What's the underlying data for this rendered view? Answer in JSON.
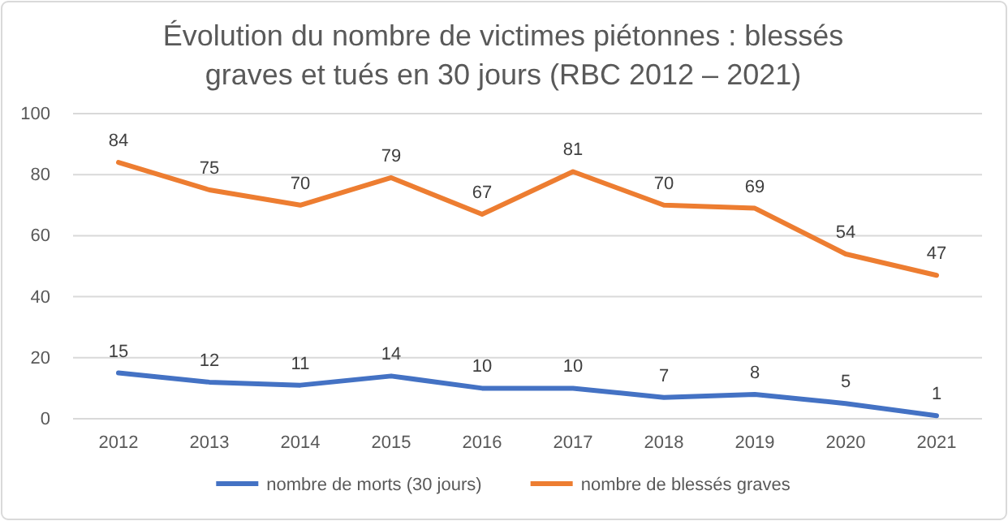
{
  "chart_data": {
    "type": "line",
    "title": "Évolution du nombre de victimes piétonnes : blessés graves et tués en 30 jours (RBC 2012 – 2021)",
    "categories": [
      "2012",
      "2013",
      "2014",
      "2015",
      "2016",
      "2017",
      "2018",
      "2019",
      "2020",
      "2021"
    ],
    "series": [
      {
        "name": "nombre de morts (30 jours)",
        "color": "#4472c4",
        "values": [
          15,
          12,
          11,
          14,
          10,
          10,
          7,
          8,
          5,
          1
        ]
      },
      {
        "name": "nombre de blessés graves",
        "color": "#ed7d31",
        "values": [
          84,
          75,
          70,
          79,
          67,
          81,
          70,
          69,
          54,
          47
        ]
      }
    ],
    "ylim": [
      0,
      100
    ],
    "yticks": [
      0,
      20,
      40,
      60,
      80,
      100
    ],
    "grid": "y",
    "legend": "bottom",
    "data_labels": true,
    "marker": "none",
    "line_style": "solid"
  }
}
